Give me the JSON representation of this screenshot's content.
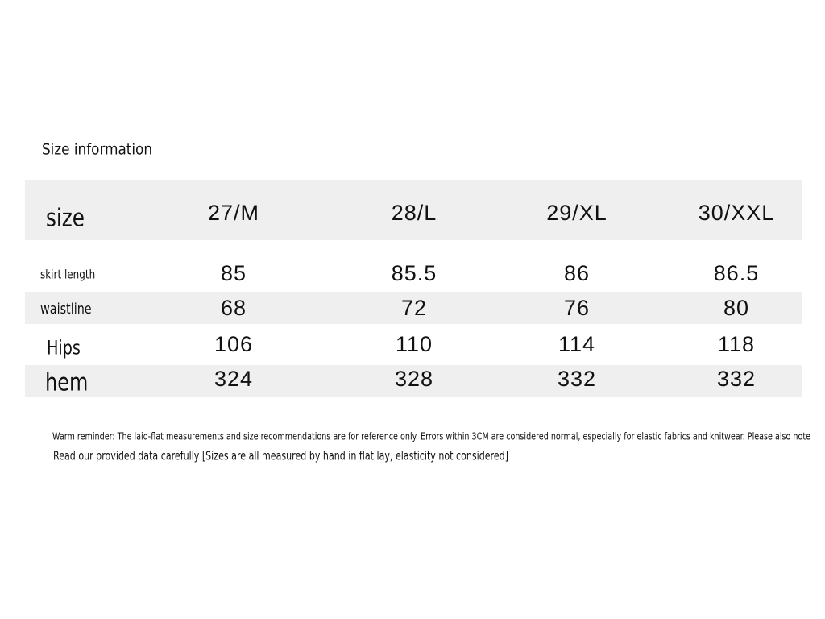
{
  "title": "Size information",
  "table": {
    "header": [
      "size",
      "27/M",
      "28/L",
      "29/XL",
      "30/XXL"
    ],
    "rows": [
      [
        "skirt length",
        "85",
        "85.5",
        "86",
        "86.5"
      ],
      [
        "waistline",
        "68",
        "72",
        "76",
        "80"
      ],
      [
        "Hips",
        "106",
        "110",
        "114",
        "118"
      ],
      [
        "hem",
        "324",
        "328",
        "332",
        "332"
      ]
    ]
  },
  "notes": [
    "Warm reminder: The laid-flat measurements and size recommendations are for reference only. Errors within 3CM are considered normal, especially for elastic fabrics and knitwear. Please also note",
    "Read our provided data carefully [Sizes are all measured by hand in flat lay, elasticity not considered]"
  ]
}
